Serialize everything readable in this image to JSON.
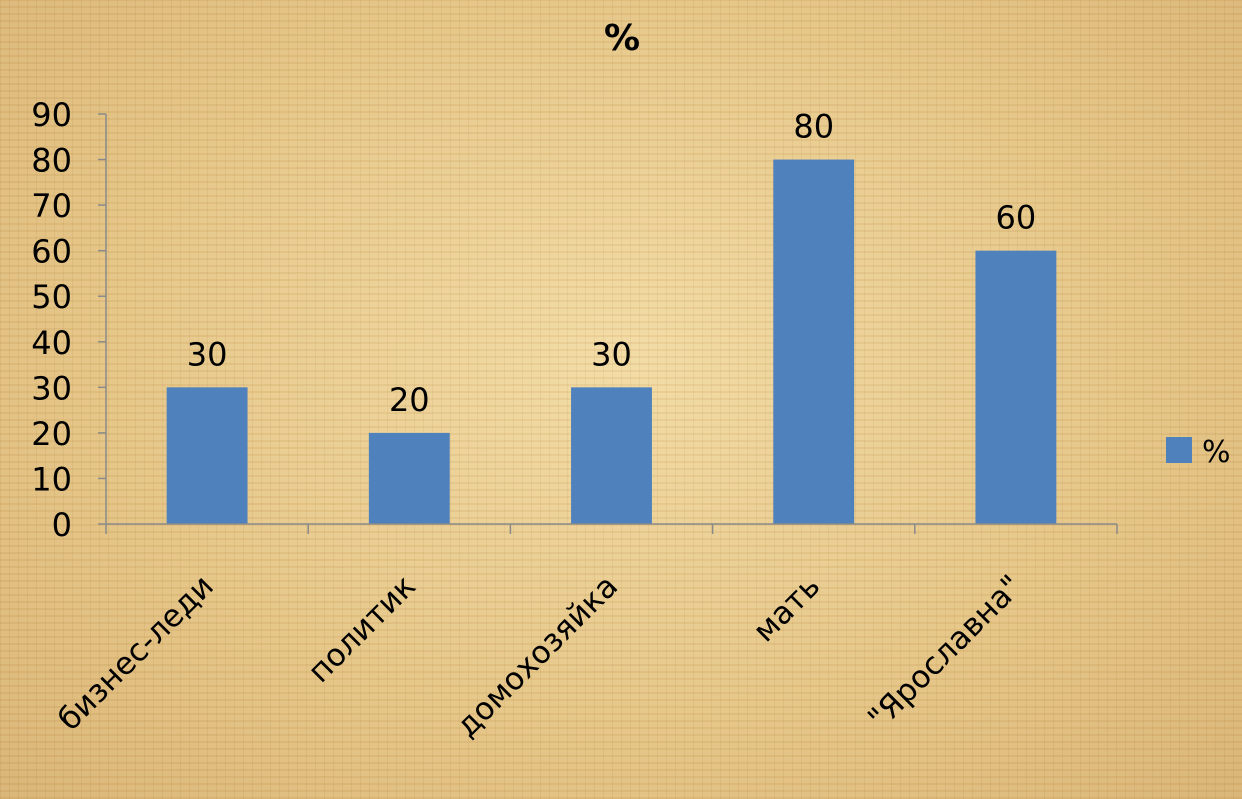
{
  "chart_data": {
    "type": "bar",
    "title": "%",
    "xlabel": "",
    "ylabel": "",
    "categories": [
      "бизнес-леди",
      "политик",
      "домохозяйка",
      "мать",
      "\"Ярославна\""
    ],
    "series": [
      {
        "name": "%",
        "values": [
          30,
          20,
          30,
          80,
          60
        ]
      }
    ],
    "ylim": [
      0,
      90
    ],
    "yticks": [
      "0",
      "10",
      "20",
      "30",
      "40",
      "50",
      "60",
      "70",
      "80",
      "90"
    ],
    "data_labels": [
      "30",
      "20",
      "30",
      "80",
      "60"
    ],
    "grid": false,
    "legend_position": "right",
    "bar_color": "#4f81bd"
  }
}
